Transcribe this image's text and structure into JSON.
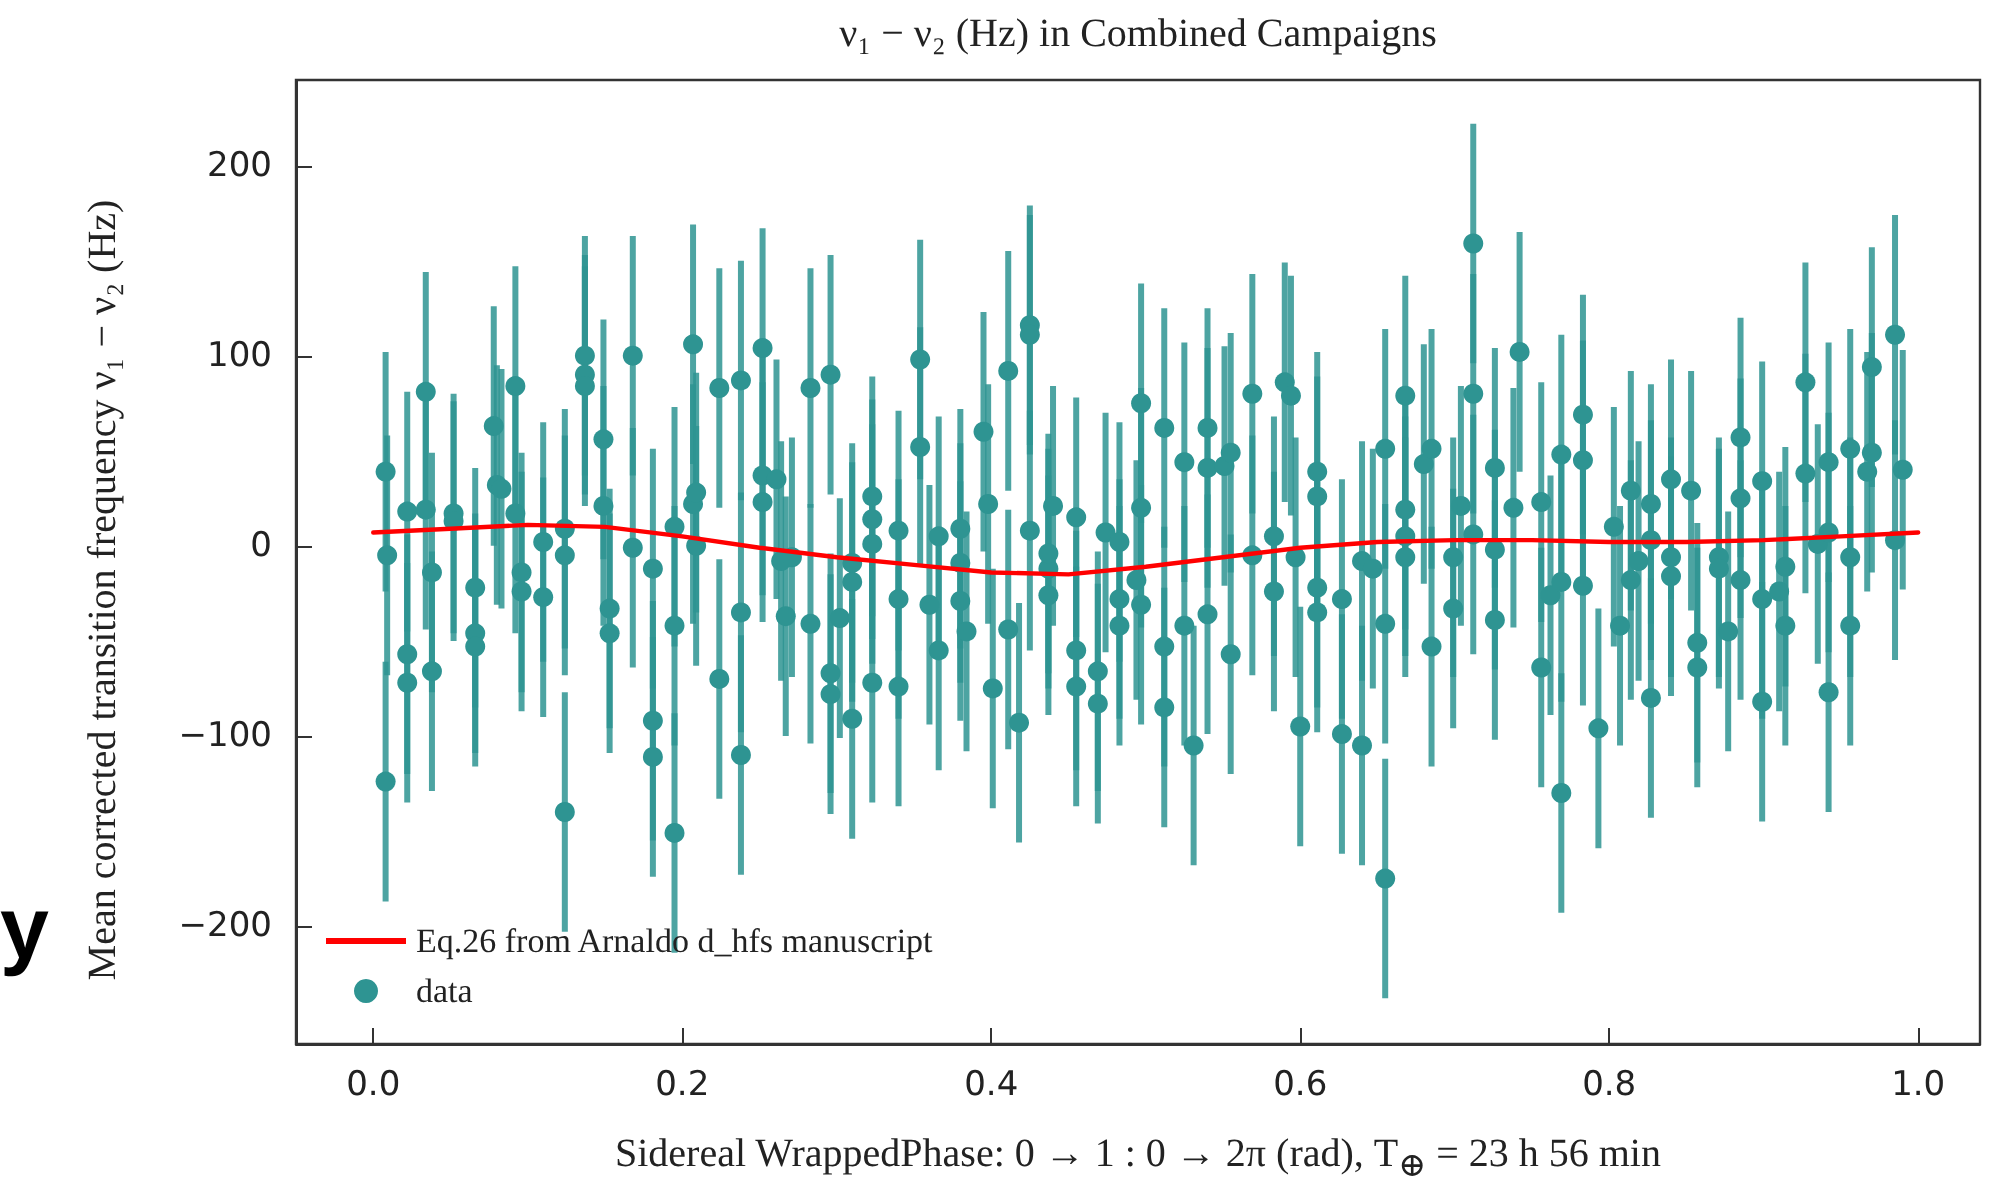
{
  "chart_data": {
    "type": "scatter",
    "title": "ν₁ − ν₂ (Hz) in Combined Campaigns",
    "xlabel": "Sidereal WrappedPhase: 0 → 1 : 0 → 2π (rad), T$_{⊕}$ = 23 h 56 min",
    "ylabel": "Mean corrected transition frequency ν₁ − ν₂ (Hz)",
    "xlim": [
      -0.05,
      1.04
    ],
    "ylim": [
      -262,
      245
    ],
    "xticks": [
      {
        "value": 0,
        "label": "0.0"
      },
      0.2,
      0.4,
      0.6,
      0.8,
      {
        "value": 1,
        "label": "1.0"
      }
    ],
    "yticks": [
      {
        "value": -200,
        "label": "−200"
      },
      {
        "value": -100,
        "label": "−100"
      },
      0,
      100,
      200
    ],
    "legend": "bottom left",
    "annotations": [
      "y"
    ],
    "series": [
      {
        "name": "Eq.26 from Arnaldo d_hfs manuscript",
        "type": "line",
        "marker": "none",
        "line_style": "solid",
        "color": "#ff0000",
        "x": [
          0,
          0.05,
          0.1,
          0.15,
          0.2,
          0.25,
          0.3,
          0.35,
          0.4,
          0.45,
          0.5,
          0.55,
          0.6,
          0.65,
          0.7,
          0.75,
          0.8,
          0.85,
          0.9,
          0.95,
          1.0
        ],
        "values": [
          7,
          9,
          11,
          10,
          5,
          -1,
          -6,
          -10,
          -14,
          -15,
          -11,
          -6,
          -1,
          2,
          3,
          3,
          2,
          2,
          3,
          5,
          7
        ]
      },
      {
        "name": "data",
        "marker": "circle",
        "color": "#2e9492",
        "x": [
          0.008,
          0.009,
          0.008,
          0.022,
          0.022,
          0.022,
          0.034,
          0.034,
          0.038,
          0.038,
          0.052,
          0.052,
          0.066,
          0.066,
          0.066,
          0.078,
          0.08,
          0.083,
          0.092,
          0.092,
          0.096,
          0.096,
          0.11,
          0.11,
          0.124,
          0.124,
          0.124,
          0.137,
          0.137,
          0.137,
          0.149,
          0.149,
          0.153,
          0.153,
          0.168,
          0.168,
          0.181,
          0.181,
          0.181,
          0.195,
          0.195,
          0.195,
          0.207,
          0.207,
          0.209,
          0.209,
          0.224,
          0.224,
          0.238,
          0.238,
          0.238,
          0.252,
          0.252,
          0.252,
          0.261,
          0.264,
          0.267,
          0.271,
          0.283,
          0.283,
          0.296,
          0.296,
          0.296,
          0.302,
          0.31,
          0.31,
          0.31,
          0.323,
          0.323,
          0.323,
          0.323,
          0.34,
          0.34,
          0.34,
          0.354,
          0.354,
          0.36,
          0.366,
          0.366,
          0.38,
          0.38,
          0.38,
          0.384,
          0.395,
          0.398,
          0.401,
          0.411,
          0.411,
          0.418,
          0.425,
          0.425,
          0.425,
          0.437,
          0.437,
          0.437,
          0.44,
          0.455,
          0.455,
          0.455,
          0.469,
          0.469,
          0.474,
          0.483,
          0.483,
          0.483,
          0.494,
          0.497,
          0.497,
          0.497,
          0.512,
          0.512,
          0.512,
          0.525,
          0.525,
          0.531,
          0.54,
          0.54,
          0.54,
          0.551,
          0.555,
          0.555,
          0.569,
          0.569,
          0.583,
          0.583,
          0.59,
          0.594,
          0.597,
          0.6,
          0.611,
          0.611,
          0.611,
          0.611,
          0.627,
          0.627,
          0.64,
          0.647,
          0.64,
          0.655,
          0.655,
          0.655,
          0.668,
          0.668,
          0.668,
          0.668,
          0.68,
          0.685,
          0.685,
          0.699,
          0.699,
          0.704,
          0.712,
          0.712,
          0.712,
          0.726,
          0.726,
          0.726,
          0.738,
          0.742,
          0.756,
          0.756,
          0.762,
          0.769,
          0.769,
          0.769,
          0.783,
          0.783,
          0.783,
          0.803,
          0.807,
          0.793,
          0.814,
          0.814,
          0.819,
          0.827,
          0.827,
          0.827,
          0.84,
          0.84,
          0.84,
          0.853,
          0.857,
          0.857,
          0.871,
          0.871,
          0.877,
          0.885,
          0.885,
          0.885,
          0.899,
          0.899,
          0.899,
          0.91,
          0.914,
          0.914,
          0.927,
          0.927,
          0.935,
          0.942,
          0.942,
          0.942,
          0.956,
          0.956,
          0.956,
          0.967,
          0.97,
          0.97,
          0.985,
          0.985,
          0.99
        ],
        "values": [
          39,
          -5,
          -124,
          18,
          -57,
          -72,
          81,
          19,
          -14,
          -66,
          17,
          13,
          -22,
          -46,
          -53,
          63,
          32,
          30,
          84,
          17,
          -14,
          -24,
          2,
          -27,
          9,
          -5,
          -140,
          100,
          90,
          84,
          56,
          21,
          -33,
          -46,
          100,
          -1,
          -12,
          -92,
          -111,
          10,
          -42,
          -151,
          106,
          22,
          28,
          0,
          83,
          -70,
          87,
          -35,
          -110,
          104,
          37,
          23,
          35,
          -8,
          -37,
          -6,
          83,
          -41,
          90,
          -67,
          -78,
          -38,
          -9,
          -19,
          -91,
          26,
          14,
          1,
          -72,
          8,
          -28,
          -74,
          98,
          52,
          -31,
          5,
          -55,
          9,
          -9,
          -29,
          -45,
          60,
          22,
          -75,
          92,
          -44,
          -93,
          116,
          111,
          8,
          -26,
          -12,
          -4,
          21,
          15,
          -55,
          -74,
          -66,
          -83,
          7,
          2,
          -28,
          -42,
          -18,
          75,
          20,
          -31,
          62,
          -53,
          -85,
          44,
          -42,
          -105,
          62,
          41,
          -36,
          42,
          49,
          -57,
          80,
          -5,
          5,
          -24,
          86,
          79,
          -6,
          -95,
          39,
          26,
          -22,
          -35,
          -28,
          -99,
          -8,
          -12,
          -105,
          51,
          -41,
          -175,
          79,
          19,
          5,
          -6,
          43,
          51,
          -53,
          -6,
          -33,
          21,
          159,
          80,
          6,
          41,
          -2,
          -39,
          20,
          102,
          23,
          -64,
          -26,
          48,
          -19,
          -130,
          69,
          45,
          -21,
          10,
          -42,
          -96,
          29,
          -18,
          -8,
          22,
          3,
          -80,
          35,
          -6,
          -16,
          29,
          -51,
          -64,
          -6,
          -12,
          -45,
          57,
          25,
          -18,
          34,
          -28,
          -82,
          -24,
          -11,
          -42,
          86,
          38,
          1,
          44,
          7,
          -77,
          51,
          -6,
          -42,
          39,
          94,
          49,
          111,
          3,
          40
        ],
        "errors": [
          63,
          63,
          63,
          63,
          63,
          63,
          63,
          63,
          63,
          63,
          63,
          63,
          63,
          63,
          63,
          63,
          63,
          63,
          63,
          63,
          63,
          63,
          63,
          63,
          63,
          63,
          63,
          63,
          63,
          63,
          63,
          63,
          63,
          63,
          63,
          63,
          63,
          63,
          63,
          63,
          63,
          63,
          63,
          63,
          63,
          63,
          63,
          63,
          63,
          63,
          63,
          63,
          63,
          63,
          63,
          63,
          63,
          63,
          63,
          63,
          63,
          63,
          63,
          63,
          63,
          63,
          63,
          63,
          63,
          63,
          63,
          63,
          63,
          63,
          63,
          63,
          63,
          63,
          63,
          63,
          63,
          63,
          63,
          63,
          63,
          63,
          63,
          63,
          63,
          63,
          63,
          63,
          63,
          63,
          63,
          63,
          63,
          63,
          63,
          63,
          63,
          63,
          63,
          63,
          63,
          63,
          63,
          63,
          63,
          63,
          63,
          63,
          63,
          63,
          63,
          63,
          63,
          63,
          63,
          63,
          63,
          63,
          63,
          63,
          63,
          63,
          63,
          63,
          63,
          63,
          63,
          63,
          63,
          63,
          63,
          63,
          63,
          63,
          63,
          63,
          63,
          63,
          63,
          63,
          63,
          63,
          63,
          63,
          63,
          63,
          63,
          63,
          63,
          63,
          63,
          63,
          63,
          63,
          63,
          63,
          63,
          63,
          63,
          63,
          63,
          63,
          63,
          63,
          63,
          63,
          63,
          63,
          63,
          63,
          63,
          63,
          63,
          63,
          63,
          63,
          63,
          63,
          63,
          63,
          63,
          63,
          63,
          63,
          63,
          63,
          63,
          63,
          63,
          63,
          63,
          63,
          63,
          63,
          63,
          63,
          63,
          63,
          63,
          63,
          63,
          63,
          63,
          63,
          63,
          63
        ]
      }
    ]
  }
}
